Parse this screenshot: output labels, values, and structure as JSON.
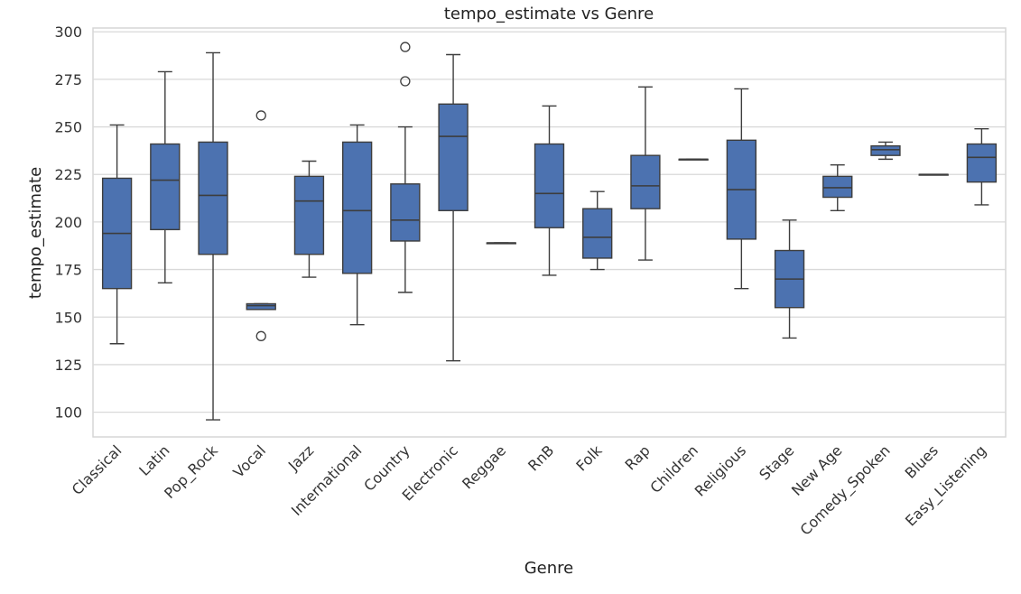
{
  "chart_data": {
    "type": "box",
    "title": "tempo_estimate vs Genre",
    "xlabel": "Genre",
    "ylabel": "tempo_estimate",
    "ylim": [
      87,
      302
    ],
    "yticks": [
      100,
      125,
      150,
      175,
      200,
      225,
      250,
      275,
      300
    ],
    "grid": true,
    "box_color": "#4c72b0",
    "line_color": "#3d3d3d",
    "categories": [
      "Classical",
      "Latin",
      "Pop_Rock",
      "Vocal",
      "Jazz",
      "International",
      "Country",
      "Electronic",
      "Reggae",
      "RnB",
      "Folk",
      "Rap",
      "Children",
      "Religious",
      "Stage",
      "New Age",
      "Comedy_Spoken",
      "Blues",
      "Easy_Listening"
    ],
    "boxes": [
      {
        "whislo": 136,
        "q1": 165,
        "med": 194,
        "q3": 223,
        "whishi": 251,
        "fliers": []
      },
      {
        "whislo": 168,
        "q1": 196,
        "med": 222,
        "q3": 241,
        "whishi": 279,
        "fliers": []
      },
      {
        "whislo": 96,
        "q1": 183,
        "med": 214,
        "q3": 242,
        "whishi": 289,
        "fliers": []
      },
      {
        "whislo": 154,
        "q1": 154,
        "med": 156,
        "q3": 157,
        "whishi": 157,
        "fliers": [
          140,
          256
        ]
      },
      {
        "whislo": 171,
        "q1": 183,
        "med": 211,
        "q3": 224,
        "whishi": 232,
        "fliers": []
      },
      {
        "whislo": 146,
        "q1": 173,
        "med": 206,
        "q3": 242,
        "whishi": 251,
        "fliers": []
      },
      {
        "whislo": 163,
        "q1": 190,
        "med": 201,
        "q3": 220,
        "whishi": 250,
        "fliers": [
          274,
          292
        ]
      },
      {
        "whislo": 127,
        "q1": 206,
        "med": 245,
        "q3": 262,
        "whishi": 288,
        "fliers": []
      },
      {
        "whislo": 189,
        "q1": 189,
        "med": 189,
        "q3": 189,
        "whishi": 189,
        "fliers": []
      },
      {
        "whislo": 172,
        "q1": 197,
        "med": 215,
        "q3": 241,
        "whishi": 261,
        "fliers": []
      },
      {
        "whislo": 175,
        "q1": 181,
        "med": 192,
        "q3": 207,
        "whishi": 216,
        "fliers": []
      },
      {
        "whislo": 180,
        "q1": 207,
        "med": 219,
        "q3": 235,
        "whishi": 271,
        "fliers": []
      },
      {
        "whislo": 233,
        "q1": 233,
        "med": 233,
        "q3": 233,
        "whishi": 233,
        "fliers": []
      },
      {
        "whislo": 165,
        "q1": 191,
        "med": 217,
        "q3": 243,
        "whishi": 270,
        "fliers": []
      },
      {
        "whislo": 139,
        "q1": 155,
        "med": 170,
        "q3": 185,
        "whishi": 201,
        "fliers": []
      },
      {
        "whislo": 206,
        "q1": 213,
        "med": 218,
        "q3": 224,
        "whishi": 230,
        "fliers": []
      },
      {
        "whislo": 233,
        "q1": 235,
        "med": 238,
        "q3": 240,
        "whishi": 242,
        "fliers": []
      },
      {
        "whislo": 225,
        "q1": 225,
        "med": 225,
        "q3": 225,
        "whishi": 225,
        "fliers": []
      },
      {
        "whislo": 209,
        "q1": 221,
        "med": 234,
        "q3": 241,
        "whishi": 249,
        "fliers": []
      }
    ]
  }
}
